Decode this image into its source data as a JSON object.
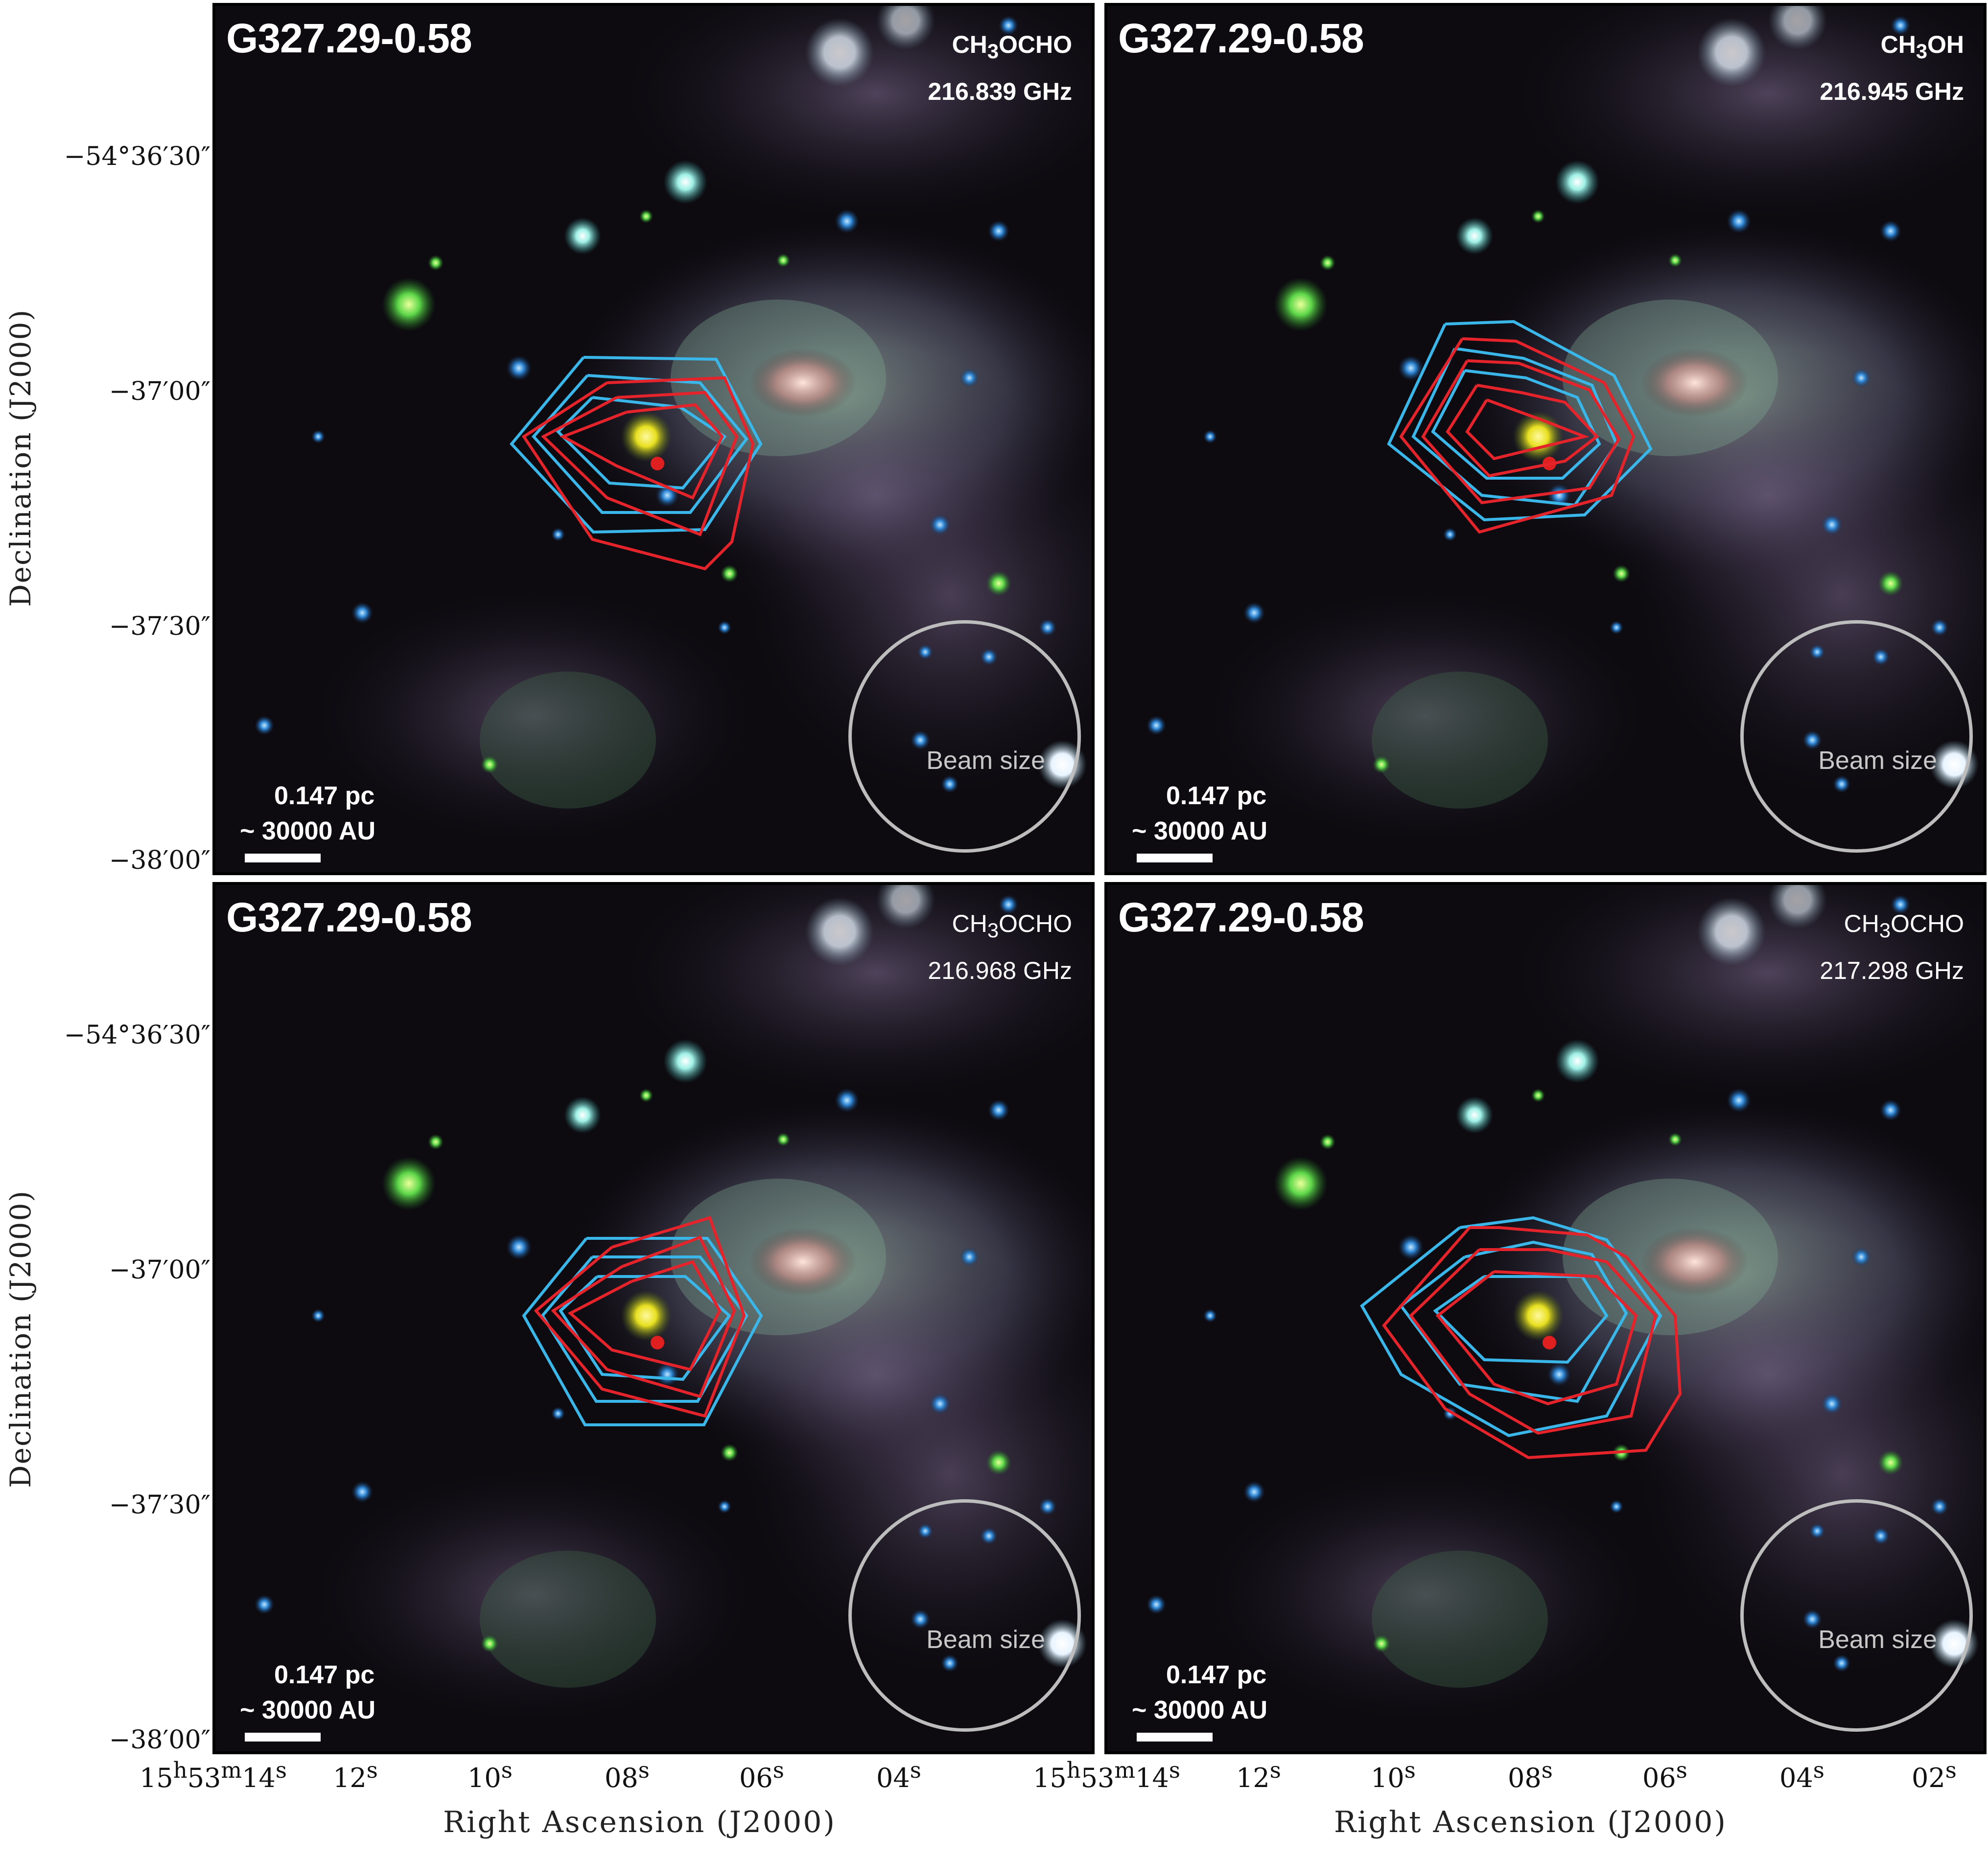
{
  "panels": [
    {
      "title": "G327.29-0.58",
      "molecule": "CH3OCHO",
      "molecule_html": "CH<sub>3</sub>OCHO",
      "frequency": "216.839 GHz",
      "bold": true,
      "scale_pc": "0.147 pc",
      "scale_au": "~ 30000 AU",
      "beam_label": "Beam size"
    },
    {
      "title": "G327.29-0.58",
      "molecule": "CH3OH",
      "molecule_html": "CH<sub>3</sub>OH",
      "frequency": "216.945 GHz",
      "bold": true,
      "scale_pc": "0.147 pc",
      "scale_au": "~ 30000 AU",
      "beam_label": "Beam size"
    },
    {
      "title": "G327.29-0.58",
      "molecule": "CH3OCHO",
      "molecule_html": "CH<sub>3</sub>OCHO",
      "frequency": "216.968 GHz",
      "bold": false,
      "scale_pc": "0.147 pc",
      "scale_au": "~ 30000 AU",
      "beam_label": "Beam size"
    },
    {
      "title": "G327.29-0.58",
      "molecule": "CH3OCHO",
      "molecule_html": "CH<sub>3</sub>OCHO",
      "frequency": "217.298 GHz",
      "bold": false,
      "scale_pc": "0.147 pc",
      "scale_au": "~ 30000 AU",
      "beam_label": "Beam size"
    }
  ],
  "axes": {
    "ylabel": "Declination (J2000)",
    "xlabel": "Right Ascension (J2000)",
    "yticks_top": [
      "−54°36′30″",
      "−37′00″",
      "−37′30″",
      "−38′00″"
    ],
    "yticks_bottom": [
      "−54°36′30″",
      "−37′00″",
      "−37′30″",
      "−38′00″"
    ],
    "xticks_left": [
      "15h53m14s",
      "12s",
      "10s",
      "08s",
      "06s",
      "04s"
    ],
    "xticks_right": [
      "15h53m14s",
      "12s",
      "10s",
      "08s",
      "06s",
      "04s",
      "02s"
    ]
  },
  "colors": {
    "contour_blue": "#3bb6e8",
    "contour_red": "#e4232b",
    "beam": "#bdbdbd"
  }
}
